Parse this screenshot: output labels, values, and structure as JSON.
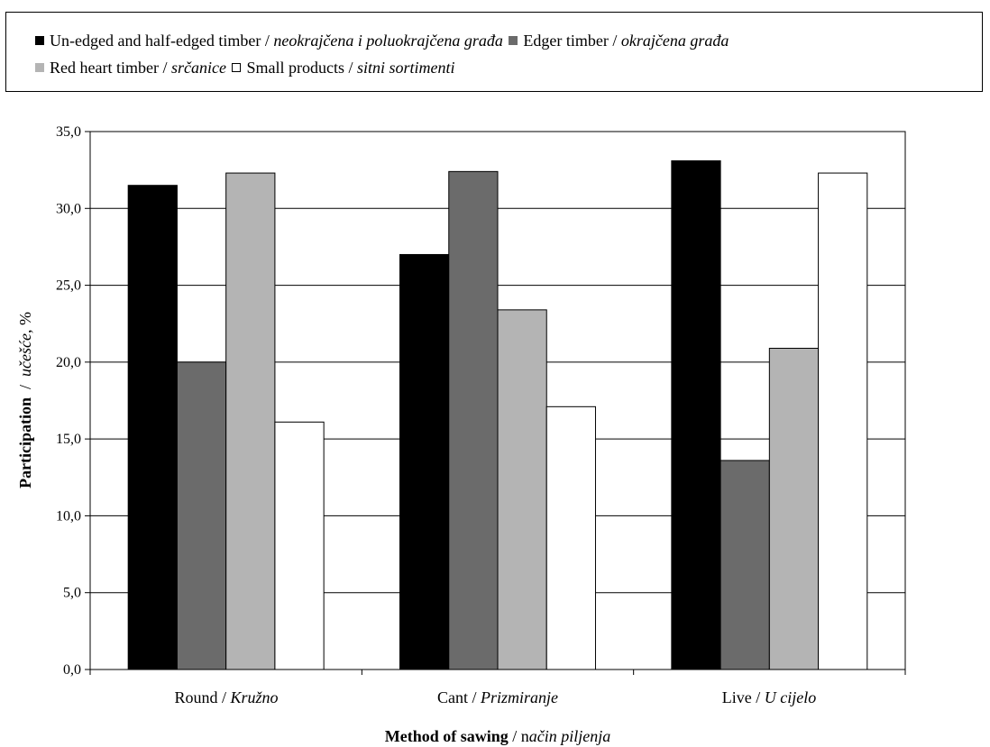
{
  "legend": {
    "items": [
      {
        "name_en": "Un-edged and half-edged timber",
        "sep": " / ",
        "name_local": "neokrajčena i poluokrajčena građa",
        "color": "#000000"
      },
      {
        "name_en": "Edger timber",
        "sep": " / ",
        "name_local": "okrajčena građa",
        "color": "#6b6b6b"
      },
      {
        "name_en": "Red heart timber",
        "sep": " / ",
        "name_local": "srčanice",
        "color": "#b4b4b4"
      },
      {
        "name_en": "Small products",
        "sep": " / ",
        "name_local": "sitni sortimenti",
        "color": "#ffffff"
      }
    ]
  },
  "axes": {
    "y_title_en": "Participation",
    "y_title_sep": "  /  ",
    "y_title_local": "učešće",
    "y_title_unit": ", %",
    "x_title_en": "Method of sawing",
    "x_title_sep": " / n",
    "x_title_local": "ačin piljenja"
  },
  "category_labels": [
    {
      "en": "Round",
      "sep": " / ",
      "local": "Kružno"
    },
    {
      "en": "Cant",
      "sep": " / ",
      "local": "Prizmiranje"
    },
    {
      "en": "Live",
      "sep": " / ",
      "local": "U cijelo"
    }
  ],
  "chart_data": {
    "type": "bar",
    "categories": [
      "Round / Kružno",
      "Cant / Prizmiranje",
      "Live / U cijelo"
    ],
    "series": [
      {
        "name": "Un-edged and half-edged timber / neokrajčena i poluokrajčena građa",
        "values": [
          31.5,
          27.0,
          33.1
        ],
        "color": "#000000"
      },
      {
        "name": "Edger timber / okrajčena građa",
        "values": [
          20.0,
          32.4,
          13.6
        ],
        "color": "#6b6b6b"
      },
      {
        "name": "Red heart timber / srčanice",
        "values": [
          32.3,
          23.4,
          20.9
        ],
        "color": "#b4b4b4"
      },
      {
        "name": "Small products / sitni sortimenti",
        "values": [
          16.1,
          17.1,
          32.3
        ],
        "color": "#ffffff"
      }
    ],
    "ylim": [
      0,
      35
    ],
    "yticks": [
      "0,0",
      "5,0",
      "10,0",
      "15,0",
      "20,0",
      "25,0",
      "30,0",
      "35,0"
    ],
    "grid": true,
    "legend_position": "top"
  }
}
